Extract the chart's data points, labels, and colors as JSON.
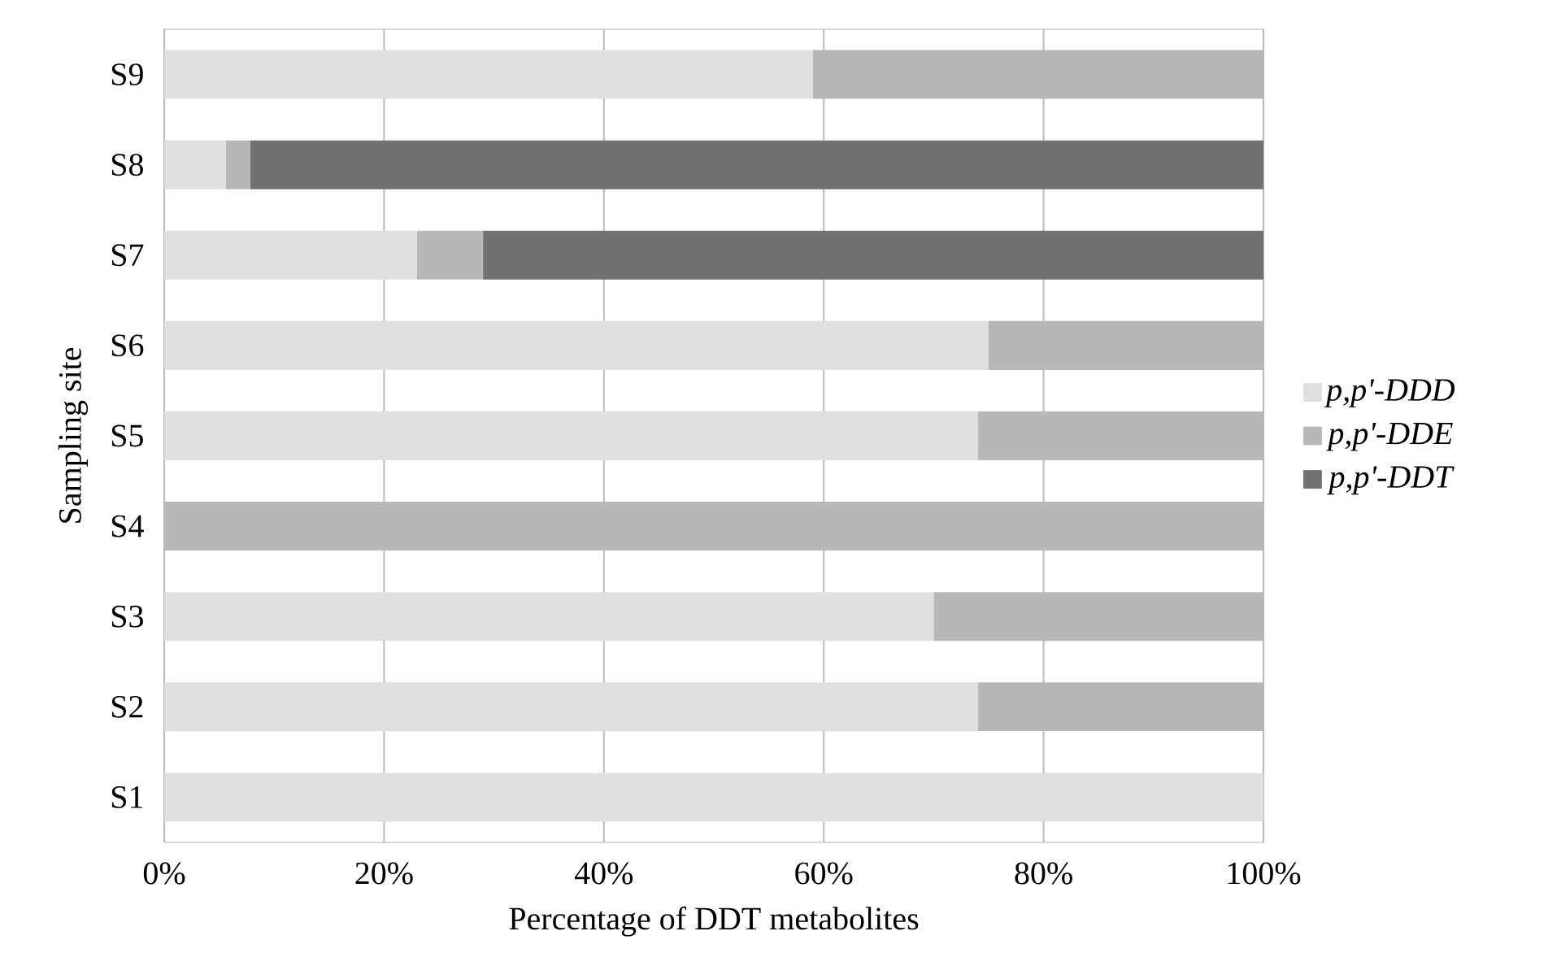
{
  "chart_data": {
    "type": "bar",
    "orientation": "horizontal",
    "stacked": true,
    "xlabel": "Percentage of DDT metabolites",
    "ylabel": "Sampling site",
    "categories": [
      "S9",
      "S8",
      "S7",
      "S6",
      "S5",
      "S4",
      "S3",
      "S2",
      "S1"
    ],
    "series": [
      {
        "name": "p,p'-DDD",
        "color": "#e0e0e0",
        "values": [
          59,
          5.6,
          23,
          75,
          74,
          0,
          70,
          74,
          100
        ]
      },
      {
        "name": "p,p'-DDE",
        "color": "#b7b8b7",
        "values": [
          41,
          2.2,
          6,
          25,
          26,
          100,
          30,
          26,
          0
        ]
      },
      {
        "name": "p,p'-DDT",
        "color": "#727272",
        "values": [
          0,
          92.2,
          71,
          0,
          0,
          0,
          0,
          0,
          0
        ]
      }
    ],
    "xlim": [
      0,
      100
    ],
    "xticks": [
      {
        "value": 0,
        "label": "0%"
      },
      {
        "value": 20,
        "label": "20%"
      },
      {
        "value": 40,
        "label": "40%"
      },
      {
        "value": 60,
        "label": "60%"
      },
      {
        "value": 80,
        "label": "80%"
      },
      {
        "value": 100,
        "label": "100%"
      }
    ],
    "grid": "x",
    "legend": "right"
  }
}
